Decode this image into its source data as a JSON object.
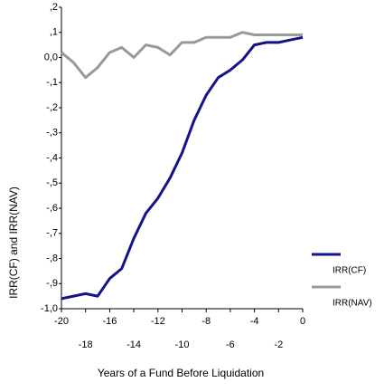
{
  "chart_data": {
    "type": "line",
    "x_label": "Years of a Fund Before Liquidation",
    "y_label": "IRR(CF) and IRR(NAV)",
    "x": [
      -20,
      -19,
      -18,
      -17,
      -16,
      -15,
      -14,
      -13,
      -12,
      -11,
      -10,
      -9,
      -8,
      -7,
      -6,
      -5,
      -4,
      -3,
      -2,
      -1,
      0
    ],
    "series": [
      {
        "name": "IRR(CF)",
        "color": "#141488",
        "values": [
          -0.96,
          -0.95,
          -0.94,
          -0.95,
          -0.88,
          -0.84,
          -0.72,
          -0.62,
          -0.56,
          -0.48,
          -0.38,
          -0.25,
          -0.15,
          -0.08,
          -0.05,
          -0.01,
          0.05,
          0.06,
          0.06,
          0.07,
          0.08
        ]
      },
      {
        "name": "IRR(NAV)",
        "color": "#999999",
        "values": [
          0.02,
          -0.02,
          -0.08,
          -0.04,
          0.02,
          0.04,
          0.0,
          0.05,
          0.04,
          0.01,
          0.06,
          0.06,
          0.08,
          0.08,
          0.08,
          0.1,
          0.09,
          0.09,
          0.09,
          0.09,
          0.09
        ]
      }
    ],
    "xlim": [
      -20,
      0
    ],
    "xticks": [
      -20,
      -18,
      -16,
      -14,
      -12,
      -10,
      -8,
      -6,
      -4,
      -2,
      0
    ],
    "ylim": [
      -1.0,
      0.2
    ],
    "yticks": [
      {
        "value": -1.0,
        "label": "-1,0"
      },
      {
        "value": -0.9,
        "label": "-,9"
      },
      {
        "value": -0.8,
        "label": "-,8"
      },
      {
        "value": -0.7,
        "label": "-,7"
      },
      {
        "value": -0.6,
        "label": "-,6"
      },
      {
        "value": -0.5,
        "label": "-,5"
      },
      {
        "value": -0.4,
        "label": "-,4"
      },
      {
        "value": -0.3,
        "label": "-,3"
      },
      {
        "value": -0.2,
        "label": "-,2"
      },
      {
        "value": -0.1,
        "label": "-,1"
      },
      {
        "value": 0.0,
        "label": "0,0"
      },
      {
        "value": 0.1,
        "label": ",1"
      },
      {
        "value": 0.2,
        "label": ",2"
      }
    ],
    "grid": false,
    "legend": "right"
  }
}
